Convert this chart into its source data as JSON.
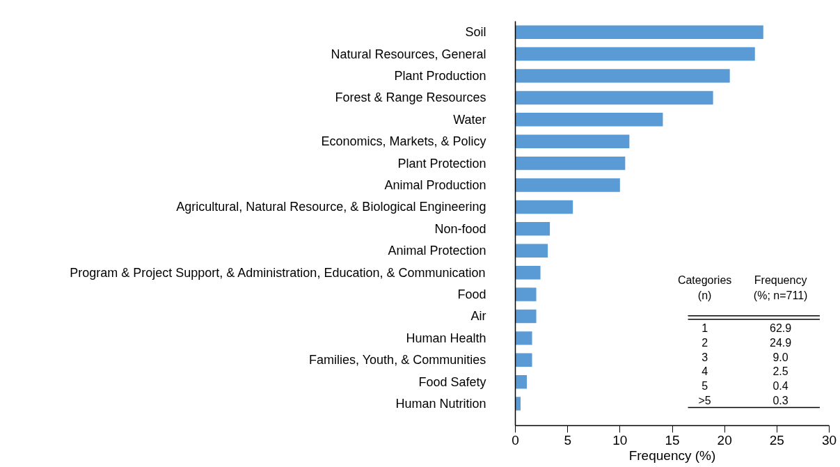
{
  "chart_data": {
    "type": "bar",
    "orientation": "horizontal",
    "xlabel": "Frequency (%)",
    "categories": [
      "Soil",
      "Natural Resources, General",
      "Plant Production",
      "Forest & Range Resources",
      "Water",
      "Economics, Markets, & Policy",
      "Plant Protection",
      "Animal Production",
      "Agricultural, Natural Resource, & Biological Engineering",
      "Non-food",
      "Animal Protection",
      "Program & Project Support, & Administration, Education, & Communication",
      "Food",
      "Air",
      "Human Health",
      "Families, Youth, & Communities",
      "Food Safety",
      "Human Nutrition"
    ],
    "values": [
      23.7,
      22.9,
      20.5,
      18.9,
      14.1,
      10.9,
      10.5,
      10.0,
      5.5,
      3.3,
      3.1,
      2.4,
      2.0,
      2.0,
      1.6,
      1.6,
      1.1,
      0.5
    ],
    "color": "#5b9bd5",
    "xlim": [
      0,
      30
    ],
    "xticks": [
      0,
      5,
      10,
      15,
      20,
      25,
      30
    ],
    "annotations": [
      "Categories\n(n)",
      "Frequency\n(%; n=711)",
      "1",
      "62.9",
      "2",
      "24.9",
      "3",
      "9.0",
      "4",
      "2.5",
      "5",
      "0.4",
      ">5",
      "0.3"
    ]
  }
}
